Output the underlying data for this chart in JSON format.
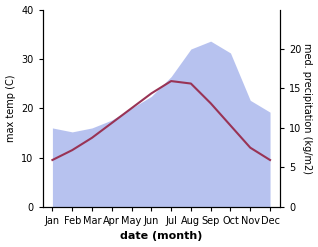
{
  "months": [
    "Jan",
    "Feb",
    "Mar",
    "Apr",
    "May",
    "Jun",
    "Jul",
    "Aug",
    "Sep",
    "Oct",
    "Nov",
    "Dec"
  ],
  "max_temp": [
    9.5,
    11.5,
    14.0,
    17.0,
    20.0,
    23.0,
    25.5,
    25.0,
    21.0,
    16.5,
    12.0,
    9.5
  ],
  "precipitation": [
    10.0,
    9.5,
    10.0,
    11.0,
    12.5,
    14.0,
    16.5,
    20.0,
    21.0,
    19.5,
    13.5,
    12.0
  ],
  "temp_color": "#993355",
  "precip_color": "#b0bcee",
  "temp_ylim": [
    0,
    40
  ],
  "precip_ylim": [
    0,
    25
  ],
  "ylabel_left": "max temp (C)",
  "ylabel_right": "med. precipitation (kg/m2)",
  "xlabel": "date (month)",
  "bg_color": "#ffffff",
  "right_axis_ticks": [
    0,
    5,
    10,
    15,
    20
  ],
  "left_axis_ticks": [
    0,
    10,
    20,
    30,
    40
  ]
}
